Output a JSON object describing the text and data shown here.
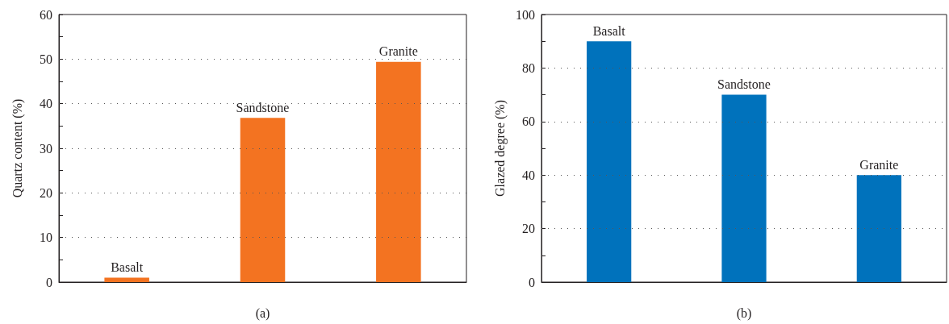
{
  "chart_data": [
    {
      "type": "bar",
      "xlabel": "(a)",
      "ylabel": "Quartz content (%)",
      "categories": [
        "Basalt",
        "Sandstone",
        "Granite"
      ],
      "series": [
        {
          "color": "#f37321",
          "values": [
            1,
            36.8,
            49.4
          ]
        }
      ],
      "ylim": [
        0,
        60
      ],
      "yticks": [
        0,
        {
          "value": 5,
          "label": null
        },
        10,
        {
          "value": 15,
          "label": null
        },
        20,
        {
          "value": 25,
          "label": null
        },
        30,
        {
          "value": 35,
          "label": null
        },
        40,
        {
          "value": 45,
          "label": null
        },
        50,
        {
          "value": 55,
          "label": null
        },
        60
      ],
      "grid": "y",
      "tick_labels": "y"
    },
    {
      "type": "bar",
      "xlabel": "(b)",
      "ylabel": "Glazed degree (%)",
      "categories": [
        "Basalt",
        "Sandstone",
        "Granite"
      ],
      "series": [
        {
          "color": "#0072bc",
          "values": [
            90,
            70,
            40
          ]
        }
      ],
      "ylim": [
        0,
        100
      ],
      "yticks": [
        0,
        {
          "value": 10,
          "label": null
        },
        20,
        {
          "value": 30,
          "label": null
        },
        40,
        {
          "value": 50,
          "label": null
        },
        60,
        {
          "value": 70,
          "label": null
        },
        80,
        {
          "value": 90,
          "label": null
        },
        100
      ],
      "grid": "y",
      "tick_labels": "y"
    }
  ]
}
